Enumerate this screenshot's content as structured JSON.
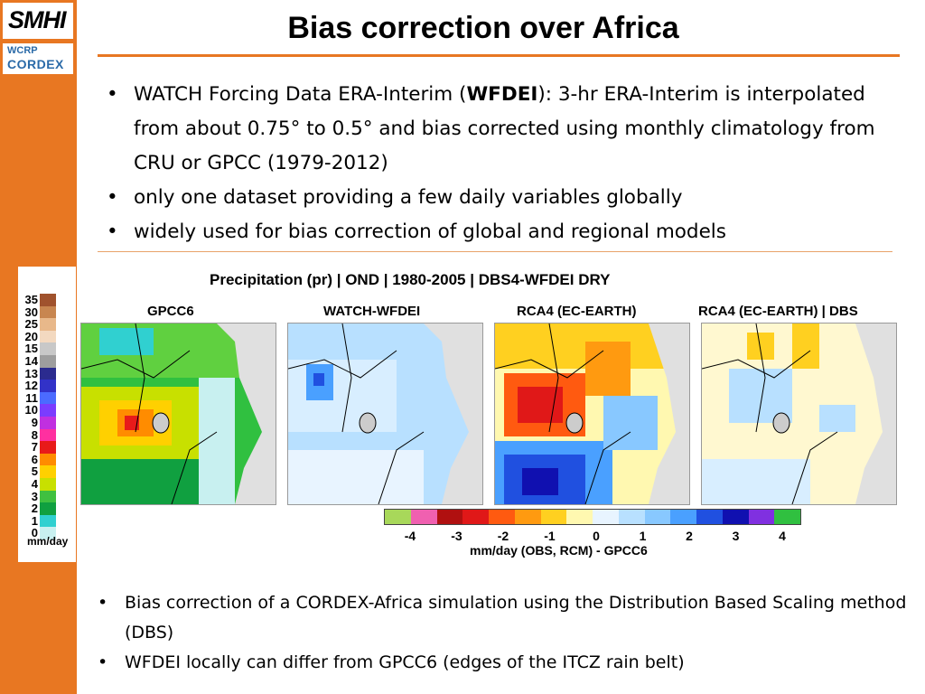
{
  "title": "Bias correction over Africa",
  "logos": {
    "smhi": "SMHI",
    "wcrp": "WCRP",
    "cordex": "CORDEX"
  },
  "top_bullets": [
    {
      "pre": "WATCH Forcing Data ERA-Interim (",
      "bold": "WFDEI",
      "post": "):  3-hr ERA-Interim is interpolated from  about  0.75° to 0.5° and bias corrected using monthly climatology from CRU or GPCC (1979-2012)"
    },
    {
      "text": "only one dataset providing a few daily variables globally"
    },
    {
      "text": "widely used for bias correction of global and regional models"
    }
  ],
  "figure": {
    "title": "Precipitation (pr) | OND | 1980-2005 | DBS4-WFDEI DRY",
    "panels": [
      "GPCC6",
      "WATCH-WFDEI",
      "RCA4 (EC-EARTH)",
      "RCA4 (EC-EARTH) | DBS"
    ],
    "abs_scale": {
      "labels": [
        "35",
        "30",
        "25",
        "20",
        "15",
        "14",
        "13",
        "12",
        "11",
        "10",
        "9",
        "8",
        "7",
        "6",
        "5",
        "4",
        "3",
        "2",
        "1",
        "0"
      ],
      "unit": "mm/day",
      "colors": [
        "#a0522d",
        "#c88650",
        "#e8b88a",
        "#f3d9c0",
        "#c8c8c8",
        "#9e9e9e",
        "#2b2b8f",
        "#3232c8",
        "#4b6bff",
        "#7b3cff",
        "#c030e0",
        "#ff30a0",
        "#e81a1a",
        "#ff8c00",
        "#ffd000",
        "#c8e000",
        "#40c040",
        "#10a040",
        "#30d0d0",
        "#c8f0f0"
      ]
    },
    "bias_scale": {
      "ticks": [
        "-4",
        "-3",
        "-2",
        "-1",
        "0",
        "1",
        "2",
        "3",
        "4"
      ],
      "label": "mm/day   (OBS, RCM) - GPCC6",
      "colors": [
        "#a8d85a",
        "#f060b0",
        "#b01010",
        "#e01818",
        "#ff5a10",
        "#ff9a10",
        "#ffd020",
        "#fff8b0",
        "#e8f4ff",
        "#b8e0ff",
        "#88c8ff",
        "#4aa0ff",
        "#2050e0",
        "#1010b0",
        "#8030e0",
        "#30c040"
      ]
    }
  },
  "bottom_bullets": [
    "Bias correction of a CORDEX-Africa simulation using the Distribution Based Scaling method (DBS)",
    "WFDEI locally can differ from GPCC6 (edges of the ITCZ rain belt)"
  ]
}
